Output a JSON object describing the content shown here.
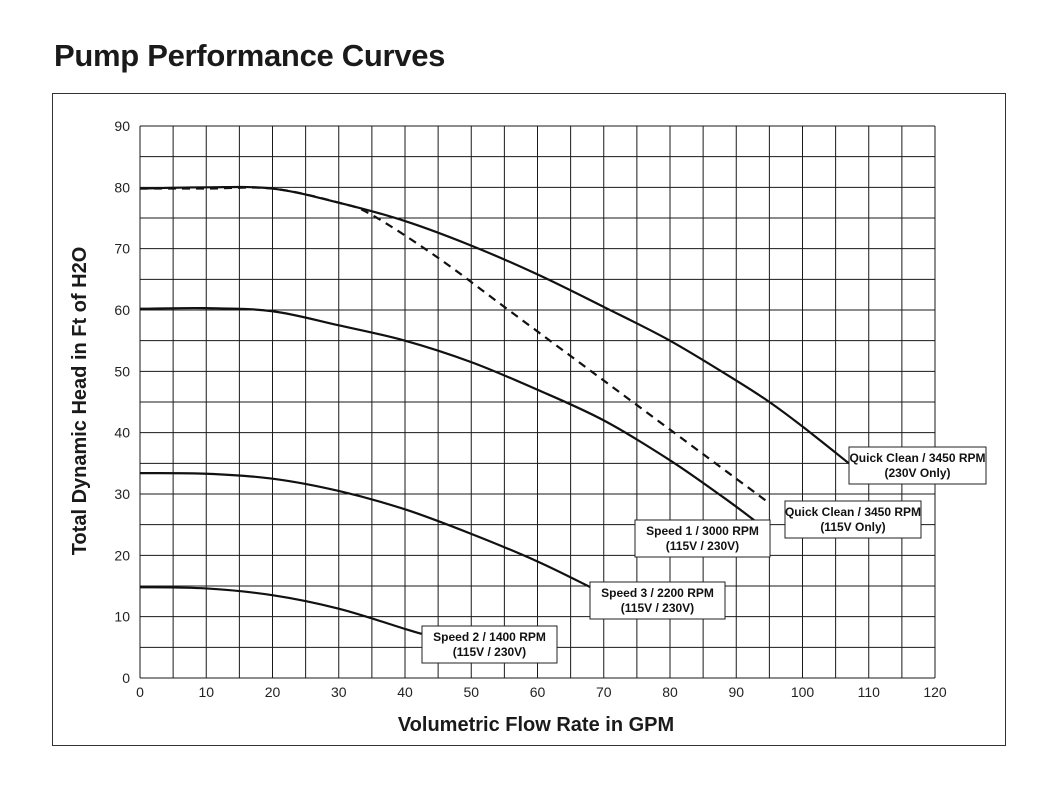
{
  "page": {
    "title": "Pump Performance Curves"
  },
  "chart_data": {
    "type": "line",
    "title": "Pump Performance Curves",
    "xlabel": "Volumetric Flow Rate in GPM",
    "ylabel": "Total Dynamic Head in Ft of H2O",
    "xlim": [
      0,
      120
    ],
    "ylim": [
      0,
      90
    ],
    "x_ticks": [
      0,
      10,
      20,
      30,
      40,
      50,
      60,
      70,
      80,
      90,
      100,
      110,
      120
    ],
    "y_ticks": [
      0,
      10,
      20,
      30,
      40,
      50,
      60,
      70,
      80,
      90
    ],
    "grid": true,
    "series": [
      {
        "name": "Quick Clean / 3450 RPM (230V Only)",
        "label_lines": [
          "Quick Clean / 3450 RPM",
          "(230V Only)"
        ],
        "style": "solid",
        "points": [
          [
            0,
            79.8
          ],
          [
            10,
            80
          ],
          [
            20,
            79.8
          ],
          [
            30,
            77.5
          ],
          [
            40,
            74.5
          ],
          [
            50,
            70.5
          ],
          [
            60,
            65.8
          ],
          [
            70,
            60.5
          ],
          [
            80,
            55
          ],
          [
            90,
            48.5
          ],
          [
            95,
            45
          ],
          [
            100,
            41
          ],
          [
            107,
            35
          ]
        ]
      },
      {
        "name": "Quick Clean / 3450 RPM (115V Only)",
        "label_lines": [
          "Quick Clean / 3450 RPM",
          "(115V Only)"
        ],
        "style": "dashed",
        "points": [
          [
            0,
            79.8
          ],
          [
            10,
            79.8
          ],
          [
            20,
            79.8
          ],
          [
            30,
            77.5
          ],
          [
            35,
            75.5
          ],
          [
            45,
            68.5
          ],
          [
            55,
            60.5
          ],
          [
            65,
            52.5
          ],
          [
            75,
            44.5
          ],
          [
            85,
            36.5
          ],
          [
            95,
            28.5
          ]
        ]
      },
      {
        "name": "Speed 1 / 3000 RPM (115V / 230V)",
        "label_lines": [
          "Speed 1 / 3000 RPM",
          "(115V / 230V)"
        ],
        "style": "solid",
        "points": [
          [
            0,
            60.2
          ],
          [
            10,
            60.3
          ],
          [
            20,
            59.8
          ],
          [
            30,
            57.5
          ],
          [
            40,
            55
          ],
          [
            50,
            51.5
          ],
          [
            60,
            47
          ],
          [
            70,
            42
          ],
          [
            80,
            35.5
          ],
          [
            88,
            29.5
          ],
          [
            93,
            25.5
          ]
        ]
      },
      {
        "name": "Speed 3 / 2200 RPM (115V / 230V)",
        "label_lines": [
          "Speed 3 / 2200 RPM",
          "(115V / 230V)"
        ],
        "style": "solid",
        "points": [
          [
            0,
            33.4
          ],
          [
            10,
            33.3
          ],
          [
            20,
            32.5
          ],
          [
            30,
            30.5
          ],
          [
            40,
            27.5
          ],
          [
            50,
            23.5
          ],
          [
            60,
            19
          ],
          [
            68,
            14.8
          ]
        ]
      },
      {
        "name": "Speed 2 / 1400 RPM (115V / 230V)",
        "label_lines": [
          "Speed 2 / 1400 RPM",
          "(115V / 230V)"
        ],
        "style": "solid",
        "points": [
          [
            0,
            14.8
          ],
          [
            10,
            14.6
          ],
          [
            20,
            13.5
          ],
          [
            30,
            11.3
          ],
          [
            40,
            8
          ],
          [
            42.5,
            7.2
          ]
        ]
      }
    ]
  }
}
